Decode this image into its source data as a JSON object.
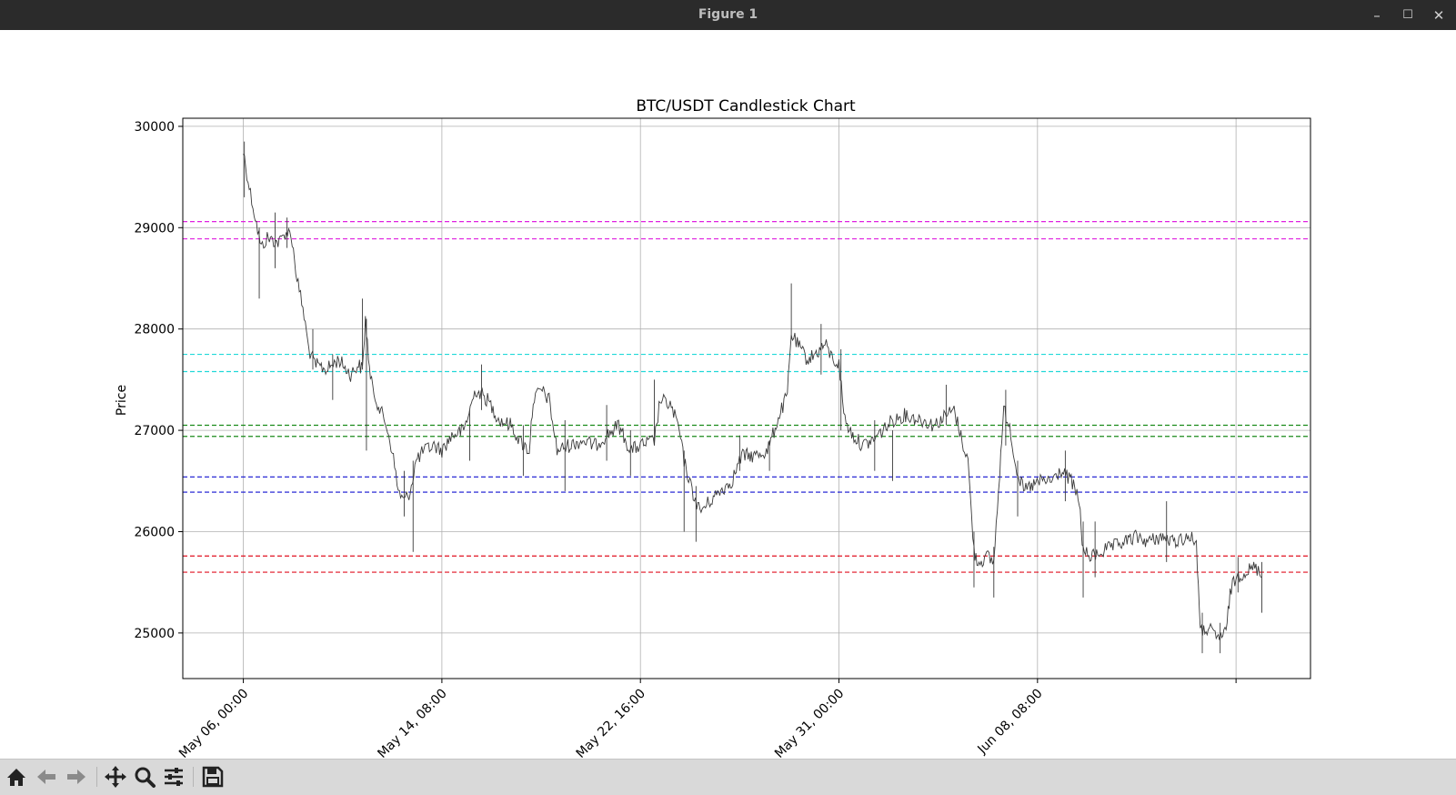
{
  "window": {
    "title": "Figure 1",
    "minimize_glyph": "–",
    "maximize_glyph": "☐",
    "close_glyph": "✕"
  },
  "toolbar": {
    "items": [
      "home-icon",
      "back-arrow-icon",
      "forward-arrow-icon",
      "pan-icon",
      "zoom-icon",
      "configure-subplots-icon",
      "save-icon"
    ]
  },
  "chart_data": {
    "type": "candlestick",
    "title": "BTC/USDT Candlestick Chart",
    "xlabel": "",
    "ylabel": "Price",
    "xlim": [
      "2023-05-03T11:00",
      "2023-06-19T19:00"
    ],
    "ylim": [
      24550,
      30080
    ],
    "yticks": [
      25000,
      26000,
      27000,
      28000,
      29000,
      30000
    ],
    "xticks": [
      {
        "t": "2023-05-06T00:00",
        "label": "May 06, 00:00"
      },
      {
        "t": "2023-05-14T08:00",
        "label": "May 14, 08:00"
      },
      {
        "t": "2023-05-22T16:00",
        "label": "May 22, 16:00"
      },
      {
        "t": "2023-05-31T00:00",
        "label": "May 31, 00:00"
      },
      {
        "t": "2023-06-08T08:00",
        "label": "Jun 08, 08:00"
      },
      {
        "t": "2023-06-16T16:00",
        "label": ""
      }
    ],
    "grid": true,
    "candle_color": "#3a3a3a",
    "price_path": [
      [
        "2023-05-06T00:00",
        29750
      ],
      [
        "2023-05-06T06:00",
        29400
      ],
      [
        "2023-05-06T12:00",
        29100
      ],
      [
        "2023-05-06T18:00",
        28800
      ],
      [
        "2023-05-07T00:00",
        28900
      ],
      [
        "2023-05-07T12:00",
        28850
      ],
      [
        "2023-05-07T18:00",
        28950
      ],
      [
        "2023-05-08T00:00",
        28950
      ],
      [
        "2023-05-08T06:00",
        28500
      ],
      [
        "2023-05-08T12:00",
        28200
      ],
      [
        "2023-05-08T18:00",
        27800
      ],
      [
        "2023-05-09T00:00",
        27650
      ],
      [
        "2023-05-09T12:00",
        27600
      ],
      [
        "2023-05-10T00:00",
        27700
      ],
      [
        "2023-05-10T12:00",
        27550
      ],
      [
        "2023-05-10T20:00",
        27650
      ],
      [
        "2023-05-11T00:00",
        27600
      ],
      [
        "2023-05-11T03:00",
        28100
      ],
      [
        "2023-05-11T08:00",
        27500
      ],
      [
        "2023-05-11T14:00",
        27300
      ],
      [
        "2023-05-12T00:00",
        27050
      ],
      [
        "2023-05-12T06:00",
        26800
      ],
      [
        "2023-05-12T12:00",
        26400
      ],
      [
        "2023-05-12T18:00",
        26300
      ],
      [
        "2023-05-13T00:00",
        26400
      ],
      [
        "2023-05-13T06:00",
        26700
      ],
      [
        "2023-05-13T14:00",
        26800
      ],
      [
        "2023-05-14T00:00",
        26850
      ],
      [
        "2023-05-14T08:00",
        26800
      ],
      [
        "2023-05-14T18:00",
        26950
      ],
      [
        "2023-05-15T06:00",
        27000
      ],
      [
        "2023-05-15T18:00",
        27400
      ],
      [
        "2023-05-16T06:00",
        27300
      ],
      [
        "2023-05-16T18:00",
        27100
      ],
      [
        "2023-05-17T06:00",
        27050
      ],
      [
        "2023-05-17T14:00",
        26900
      ],
      [
        "2023-05-18T00:00",
        26800
      ],
      [
        "2023-05-18T04:00",
        27300
      ],
      [
        "2023-05-18T12:00",
        27400
      ],
      [
        "2023-05-18T20:00",
        27300
      ],
      [
        "2023-05-19T04:00",
        26800
      ],
      [
        "2023-05-19T16:00",
        26850
      ],
      [
        "2023-05-20T06:00",
        26900
      ],
      [
        "2023-05-20T18:00",
        26850
      ],
      [
        "2023-05-21T06:00",
        26950
      ],
      [
        "2023-05-21T18:00",
        27050
      ],
      [
        "2023-05-22T06:00",
        26800
      ],
      [
        "2023-05-22T16:00",
        26850
      ],
      [
        "2023-05-23T06:00",
        26900
      ],
      [
        "2023-05-23T12:00",
        27300
      ],
      [
        "2023-05-23T22:00",
        27250
      ],
      [
        "2023-05-24T06:00",
        27050
      ],
      [
        "2023-05-24T12:00",
        26700
      ],
      [
        "2023-05-24T20:00",
        26400
      ],
      [
        "2023-05-25T04:00",
        26200
      ],
      [
        "2023-05-25T14:00",
        26300
      ],
      [
        "2023-05-26T00:00",
        26400
      ],
      [
        "2023-05-26T12:00",
        26500
      ],
      [
        "2023-05-26T22:00",
        26750
      ],
      [
        "2023-05-27T12:00",
        26750
      ],
      [
        "2023-05-28T00:00",
        26800
      ],
      [
        "2023-05-28T12:00",
        27150
      ],
      [
        "2023-05-28T20:00",
        27350
      ],
      [
        "2023-05-29T00:00",
        27950
      ],
      [
        "2023-05-29T06:00",
        27850
      ],
      [
        "2023-05-29T16:00",
        27700
      ],
      [
        "2023-05-30T00:00",
        27750
      ],
      [
        "2023-05-30T10:00",
        27850
      ],
      [
        "2023-05-30T18:00",
        27700
      ],
      [
        "2023-05-31T00:00",
        27650
      ],
      [
        "2023-05-31T06:00",
        27100
      ],
      [
        "2023-05-31T14:00",
        26950
      ],
      [
        "2023-06-01T00:00",
        26850
      ],
      [
        "2023-06-01T10:00",
        26900
      ],
      [
        "2023-06-01T20:00",
        27000
      ],
      [
        "2023-06-02T06:00",
        27100
      ],
      [
        "2023-06-02T18:00",
        27150
      ],
      [
        "2023-06-03T12:00",
        27100
      ],
      [
        "2023-06-04T00:00",
        27050
      ],
      [
        "2023-06-04T12:00",
        27150
      ],
      [
        "2023-06-04T20:00",
        27200
      ],
      [
        "2023-06-05T04:00",
        26900
      ],
      [
        "2023-06-05T10:00",
        26700
      ],
      [
        "2023-06-05T16:00",
        25800
      ],
      [
        "2023-06-05T20:00",
        25700
      ],
      [
        "2023-06-06T06:00",
        25750
      ],
      [
        "2023-06-06T12:00",
        25700
      ],
      [
        "2023-06-06T18:00",
        26600
      ],
      [
        "2023-06-06T22:00",
        27200
      ],
      [
        "2023-06-07T04:00",
        27050
      ],
      [
        "2023-06-07T10:00",
        26650
      ],
      [
        "2023-06-07T18:00",
        26400
      ],
      [
        "2023-06-08T02:00",
        26450
      ],
      [
        "2023-06-08T12:00",
        26500
      ],
      [
        "2023-06-08T22:00",
        26500
      ],
      [
        "2023-06-09T08:00",
        26600
      ],
      [
        "2023-06-09T18:00",
        26500
      ],
      [
        "2023-06-10T02:00",
        26300
      ],
      [
        "2023-06-10T06:00",
        25800
      ],
      [
        "2023-06-10T14:00",
        25750
      ],
      [
        "2023-06-11T00:00",
        25800
      ],
      [
        "2023-06-11T12:00",
        25850
      ],
      [
        "2023-06-12T00:00",
        25900
      ],
      [
        "2023-06-12T12:00",
        25950
      ],
      [
        "2023-06-13T00:00",
        25900
      ],
      [
        "2023-06-13T12:00",
        25950
      ],
      [
        "2023-06-14T00:00",
        25900
      ],
      [
        "2023-06-14T16:00",
        25950
      ],
      [
        "2023-06-15T00:00",
        25900
      ],
      [
        "2023-06-15T04:00",
        25000
      ],
      [
        "2023-06-15T12:00",
        25050
      ],
      [
        "2023-06-15T20:00",
        24950
      ],
      [
        "2023-06-16T06:00",
        25000
      ],
      [
        "2023-06-16T10:00",
        25400
      ],
      [
        "2023-06-16T16:00",
        25550
      ],
      [
        "2023-06-17T00:00",
        25600
      ],
      [
        "2023-06-17T12:00",
        25650
      ],
      [
        "2023-06-17T18:00",
        25550
      ]
    ],
    "spikes": [
      {
        "t": "2023-05-06T01:00",
        "low": 29300,
        "high": 29850
      },
      {
        "t": "2023-05-06T16:00",
        "low": 28300,
        "high": 29000
      },
      {
        "t": "2023-05-07T08:00",
        "low": 28600,
        "high": 29150
      },
      {
        "t": "2023-05-07T20:00",
        "low": 28800,
        "high": 29100
      },
      {
        "t": "2023-05-08T22:00",
        "low": 27600,
        "high": 28000
      },
      {
        "t": "2023-05-09T18:00",
        "low": 27300,
        "high": 27750
      },
      {
        "t": "2023-05-11T00:00",
        "low": 27600,
        "high": 28300
      },
      {
        "t": "2023-05-11T04:00",
        "low": 26800,
        "high": 28100
      },
      {
        "t": "2023-05-12T18:00",
        "low": 26150,
        "high": 26600
      },
      {
        "t": "2023-05-13T03:00",
        "low": 25800,
        "high": 26700
      },
      {
        "t": "2023-05-15T12:00",
        "low": 26700,
        "high": 27200
      },
      {
        "t": "2023-05-16T00:00",
        "low": 27200,
        "high": 27650
      },
      {
        "t": "2023-05-17T18:00",
        "low": 26550,
        "high": 27050
      },
      {
        "t": "2023-05-19T12:00",
        "low": 26400,
        "high": 27100
      },
      {
        "t": "2023-05-21T06:00",
        "low": 26700,
        "high": 27250
      },
      {
        "t": "2023-05-22T06:00",
        "low": 26550,
        "high": 27000
      },
      {
        "t": "2023-05-23T06:00",
        "low": 26850,
        "high": 27500
      },
      {
        "t": "2023-05-24T12:00",
        "low": 26000,
        "high": 26800
      },
      {
        "t": "2023-05-25T00:00",
        "low": 25900,
        "high": 26450
      },
      {
        "t": "2023-05-26T20:00",
        "low": 26600,
        "high": 26950
      },
      {
        "t": "2023-05-28T02:00",
        "low": 26600,
        "high": 26900
      },
      {
        "t": "2023-05-29T00:00",
        "low": 27900,
        "high": 28450
      },
      {
        "t": "2023-05-30T06:00",
        "low": 27550,
        "high": 28050
      },
      {
        "t": "2023-05-31T02:00",
        "low": 27000,
        "high": 27800
      },
      {
        "t": "2023-06-01T12:00",
        "low": 26600,
        "high": 27100
      },
      {
        "t": "2023-06-02T06:00",
        "low": 26500,
        "high": 27000
      },
      {
        "t": "2023-06-04T12:00",
        "low": 27050,
        "high": 27450
      },
      {
        "t": "2023-06-05T16:00",
        "low": 25450,
        "high": 26000
      },
      {
        "t": "2023-06-06T12:00",
        "low": 25350,
        "high": 25850
      },
      {
        "t": "2023-06-07T00:00",
        "low": 26850,
        "high": 27400
      },
      {
        "t": "2023-06-07T12:00",
        "low": 26150,
        "high": 26700
      },
      {
        "t": "2023-06-09T12:00",
        "low": 26300,
        "high": 26800
      },
      {
        "t": "2023-06-10T06:00",
        "low": 25350,
        "high": 26100
      },
      {
        "t": "2023-06-10T18:00",
        "low": 25550,
        "high": 26100
      },
      {
        "t": "2023-06-13T18:00",
        "low": 25700,
        "high": 26300
      },
      {
        "t": "2023-06-15T06:00",
        "low": 24800,
        "high": 25200
      },
      {
        "t": "2023-06-16T00:00",
        "low": 24800,
        "high": 25100
      },
      {
        "t": "2023-06-16T18:00",
        "low": 25400,
        "high": 25750
      },
      {
        "t": "2023-06-17T18:00",
        "low": 25200,
        "high": 25700
      }
    ],
    "hlines": [
      {
        "y": 29060,
        "color": "#e020e0"
      },
      {
        "y": 28890,
        "color": "#e020e0"
      },
      {
        "y": 27750,
        "color": "#20d8d8"
      },
      {
        "y": 27580,
        "color": "#20d8d8"
      },
      {
        "y": 27050,
        "color": "#1a8a1a"
      },
      {
        "y": 26940,
        "color": "#1a8a1a"
      },
      {
        "y": 26540,
        "color": "#1010d0"
      },
      {
        "y": 26390,
        "color": "#1010d0"
      },
      {
        "y": 25760,
        "color": "#e01020"
      },
      {
        "y": 25600,
        "color": "#e01020"
      }
    ]
  }
}
